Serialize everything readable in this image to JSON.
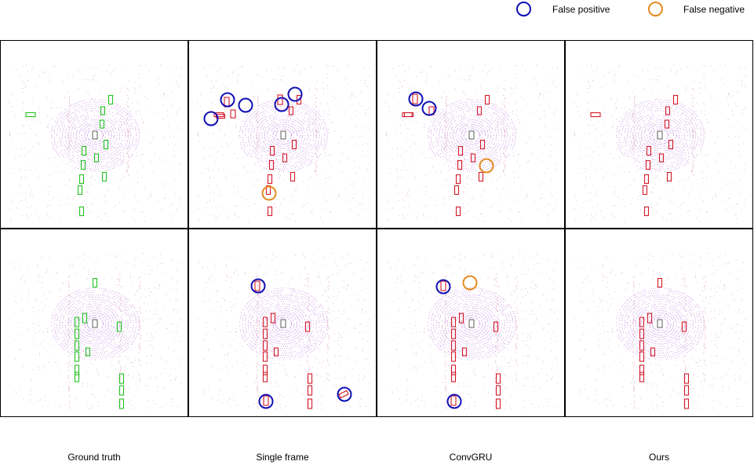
{
  "legend": {
    "false_positive": {
      "label": "False positive",
      "color": "#1010b4"
    },
    "false_negative": {
      "label": "False negative",
      "color": "#e58a1f"
    }
  },
  "columns": [
    {
      "label": "Ground truth"
    },
    {
      "label": "Single frame"
    },
    {
      "label": "ConvGRU"
    },
    {
      "label": "Ours"
    }
  ],
  "colors": {
    "ground_truth_box": "#22c322",
    "prediction_box": "#d41a2a",
    "lidar_point": "#a24ad6",
    "lidar_far_point": "#c44060",
    "cell_border": "#000000"
  }
}
